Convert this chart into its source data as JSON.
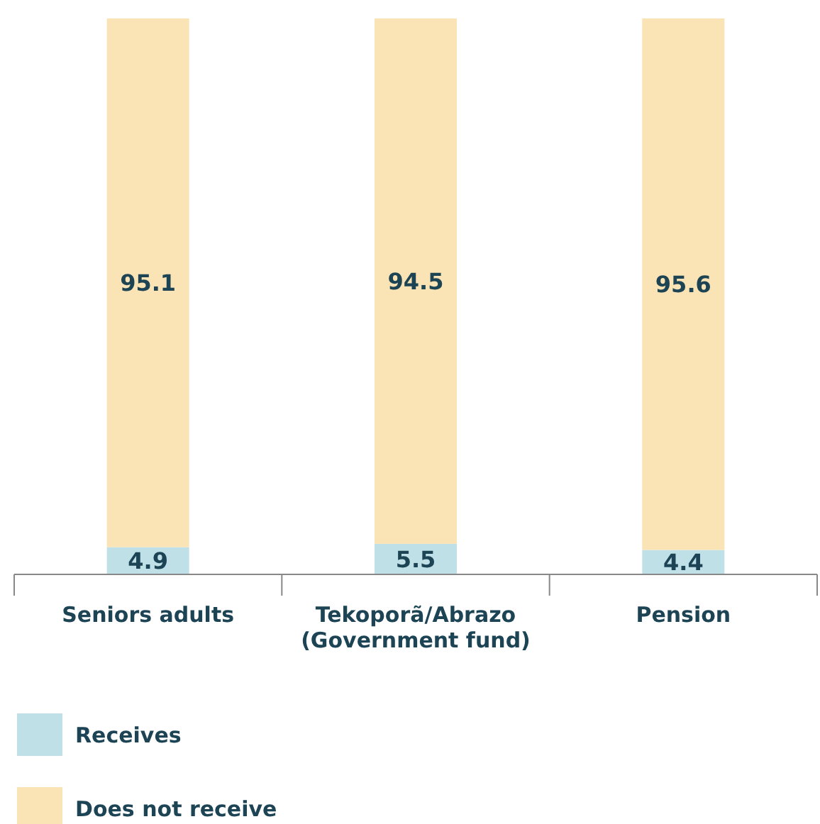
{
  "chart_data": {
    "type": "bar",
    "stacked": true,
    "categories": [
      "Seniors adults",
      "Tekoporã/Abrazo (Government fund)",
      "Pension"
    ],
    "series": [
      {
        "name": "Receives",
        "color": "#bfe0e6",
        "values": [
          4.9,
          5.5,
          4.4
        ]
      },
      {
        "name": "Does not receive",
        "color": "#fae3b4",
        "values": [
          95.1,
          94.5,
          95.6
        ]
      }
    ],
    "ylim": [
      0,
      100
    ],
    "tick_labels": "x",
    "data_labels": true,
    "legend": "bottom"
  }
}
